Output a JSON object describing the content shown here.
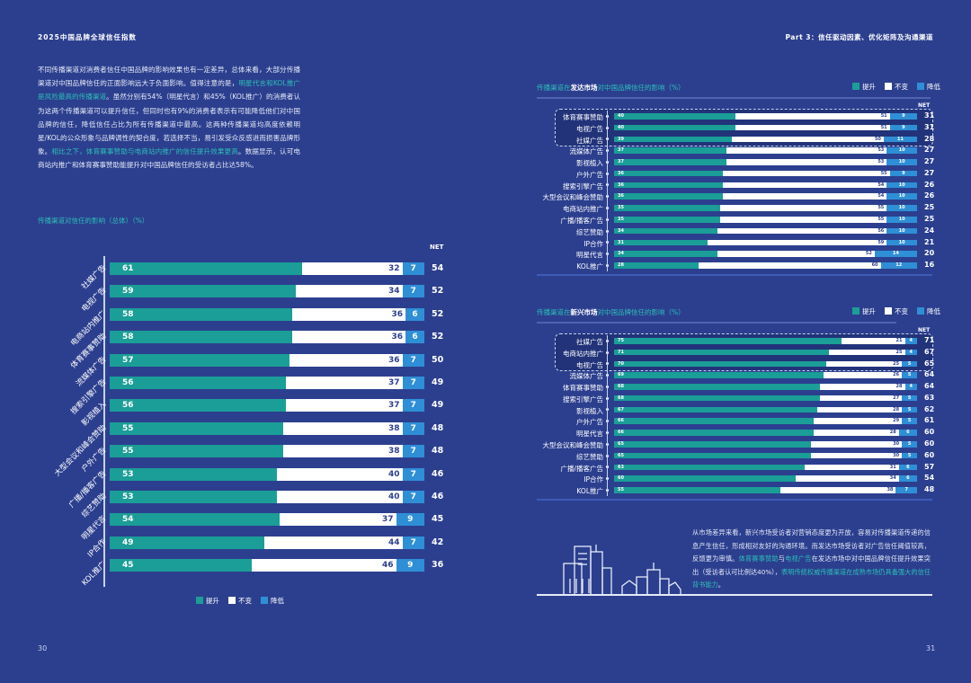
{
  "header": {
    "left": "2025中国品牌全球信任指数",
    "right": "Part 3：信任驱动因素、优化矩阵及沟通渠道"
  },
  "left_text": {
    "p1": "不同传播渠道对消费者信任中国品牌的影响效果也有一定差异，总体来看，大部分传播渠道对中国品牌信任的正面影响远大于负面影响。值得注意的是，",
    "h1": "明星代言和KOL推广是风险最高的传播渠道",
    "p2": "。虽然分别有54%（明星代言）和45%（KOL推广）的消费者认为这两个传播渠道可以提升信任，但同时也有9%的消费者表示有可能降低他们对中国品牌的信任，降低信任占比为所有传播渠道中最高。这两种传播渠道均高度依赖明星/KOL的公众形象与品牌调性的契合度，若选择不当，易引发受众反感进而损害品牌形象。",
    "h2": "相比之下，体育赛事赞助与电商站内推广的信任提升效果更高",
    "p3": "。数据显示，认可电商站内推广和体育赛事赞助能提升对中国品牌信任的受访者占比达58%。"
  },
  "right_text": {
    "p1": "从市场差异来看，新兴市场受访者对营销态度更为开放，容易对传播渠道传递的信息产生信任，形成相对友好的沟通环境。而发达市场受访者对广告信任阈值较高，反馈更为审慎。",
    "h1": "体育赛事赞助",
    "p2": "与",
    "h2": "电视广告",
    "p3": "在发达市场中对中国品牌信任提升效果突出（受访者认可比例达40%），",
    "h3": "表明传统权威传播渠道在成熟市场仍具备强大的信任背书能力",
    "p4": "。"
  },
  "legend": {
    "up": "提升",
    "same": "不变",
    "down": "降低"
  },
  "colors": {
    "up": "#1b9e97",
    "same": "#ffffff",
    "down": "#2f8fd6",
    "bg": "#2c3f8f"
  },
  "page_numbers": {
    "left": "30",
    "right": "31"
  },
  "chart_data": [
    {
      "type": "bar",
      "stacked": true,
      "orientation": "horizontal",
      "title": "传播渠道对信任的影响（总体）（%）",
      "net_label": "NET",
      "series_names": [
        "提升",
        "不变",
        "降低"
      ],
      "categories": [
        "社媒广告",
        "电视广告",
        "电商站内推广",
        "体育赛事赞助",
        "流媒体广告",
        "搜索引擎广告",
        "影视植入",
        "大型会议和峰会赞助",
        "户外广告",
        "广播/播客广告",
        "综艺赞助",
        "明星代言",
        "IP合作",
        "KOL推广"
      ],
      "up": [
        61,
        59,
        58,
        58,
        57,
        56,
        56,
        55,
        55,
        53,
        53,
        54,
        49,
        45
      ],
      "same": [
        32,
        34,
        36,
        36,
        36,
        37,
        37,
        38,
        38,
        40,
        40,
        37,
        44,
        46
      ],
      "down": [
        7,
        7,
        6,
        6,
        7,
        7,
        7,
        7,
        7,
        7,
        7,
        9,
        7,
        9
      ],
      "net": [
        54,
        52,
        52,
        52,
        50,
        49,
        49,
        48,
        48,
        46,
        46,
        45,
        42,
        36
      ],
      "xlim": [
        0,
        100
      ]
    },
    {
      "type": "bar",
      "stacked": true,
      "orientation": "horizontal",
      "title_pre": "传播渠道在",
      "title_bold": "发达市场",
      "title_post": "对中国品牌信任的影响（%）",
      "net_label": "NET",
      "highlighted_top": 3,
      "categories": [
        "体育赛事赞助",
        "电视广告",
        "社媒广告",
        "流媒体广告",
        "影视植入",
        "户外广告",
        "搜索引擎广告",
        "大型会议和峰会赞助",
        "电商站内推广",
        "广播/播客广告",
        "综艺赞助",
        "IP合作",
        "明星代言",
        "KOL推广"
      ],
      "up": [
        40,
        40,
        39,
        37,
        37,
        36,
        36,
        36,
        35,
        35,
        34,
        31,
        34,
        28
      ],
      "same": [
        51,
        51,
        50,
        53,
        53,
        55,
        54,
        54,
        55,
        55,
        56,
        59,
        52,
        60
      ],
      "down": [
        9,
        9,
        11,
        10,
        10,
        9,
        10,
        10,
        10,
        10,
        10,
        10,
        14,
        12
      ],
      "net": [
        31,
        31,
        28,
        27,
        27,
        27,
        26,
        26,
        25,
        25,
        24,
        21,
        20,
        16
      ],
      "xlim": [
        0,
        100
      ]
    },
    {
      "type": "bar",
      "stacked": true,
      "orientation": "horizontal",
      "title_pre": "传播渠道在",
      "title_bold": "新兴市场",
      "title_post": "对中国品牌信任的影响（%）",
      "net_label": "NET",
      "highlighted_top": 3,
      "categories": [
        "社媒广告",
        "电商站内推广",
        "电视广告",
        "流媒体广告",
        "体育赛事赞助",
        "搜索引擎广告",
        "影视植入",
        "户外广告",
        "明星代言",
        "大型会议和峰会赞助",
        "综艺赞助",
        "广播/播客广告",
        "IP合作",
        "KOL推广"
      ],
      "up": [
        75,
        71,
        70,
        69,
        68,
        68,
        67,
        66,
        66,
        65,
        65,
        63,
        60,
        55
      ],
      "same": [
        21,
        25,
        25,
        26,
        28,
        27,
        28,
        29,
        28,
        30,
        30,
        31,
        34,
        38
      ],
      "down": [
        4,
        4,
        5,
        5,
        4,
        5,
        5,
        5,
        6,
        5,
        5,
        6,
        6,
        7
      ],
      "net": [
        71,
        67,
        65,
        64,
        64,
        63,
        62,
        61,
        60,
        60,
        60,
        57,
        54,
        48
      ],
      "xlim": [
        0,
        100
      ]
    }
  ]
}
